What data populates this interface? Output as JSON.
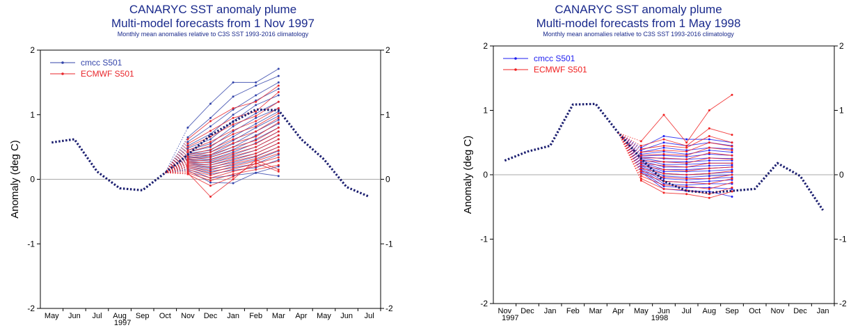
{
  "chart_data": [
    {
      "type": "line",
      "title": "CANARYC SST anomaly plume",
      "subtitle": "Multi-model forecasts from 1 Nov 1997",
      "note": "Monthly mean anomalies relative to C3S SST 1993-2016 climatology",
      "ylabel": "Anomaly (deg C)",
      "ylim": [
        -2,
        2
      ],
      "yticks": [
        "-2",
        "-1",
        "0",
        "1",
        "2"
      ],
      "x": [
        "May",
        "Jun",
        "Jul",
        "Aug",
        "Sep",
        "Oct",
        "Nov",
        "Dec",
        "Jan",
        "Feb",
        "Mar",
        "Apr",
        "May",
        "Jun",
        "Jul"
      ],
      "year_label": "1997",
      "legend": [
        "cmcc S501",
        "ECMWF S501"
      ],
      "colors": {
        "cmcc": "#3344aa",
        "ecmwf": "#e8262b",
        "obs": "#1c1f70"
      },
      "observed": [
        0.57,
        0.62,
        0.12,
        -0.14,
        -0.17,
        0.1,
        0.38,
        0.68,
        0.89,
        1.08,
        1.07,
        0.62,
        0.31,
        -0.12,
        -0.27
      ],
      "forecast_start_index": 5,
      "forecast_months": [
        6,
        7,
        8,
        9,
        10
      ],
      "series": [
        {
          "name": "cmcc S501",
          "members": [
            [
              0.8,
              1.17,
              1.5,
              1.5,
              1.71
            ],
            [
              0.65,
              0.95,
              1.28,
              1.45,
              1.6
            ],
            [
              0.58,
              0.82,
              1.08,
              1.3,
              1.5
            ],
            [
              0.52,
              0.7,
              1.0,
              1.22,
              1.4
            ],
            [
              0.48,
              0.62,
              0.9,
              1.15,
              1.3
            ],
            [
              0.45,
              0.55,
              0.82,
              1.02,
              1.2
            ],
            [
              0.42,
              0.5,
              0.74,
              0.95,
              1.1
            ],
            [
              0.4,
              0.45,
              0.66,
              0.86,
              1.05
            ],
            [
              0.38,
              0.42,
              0.6,
              0.8,
              0.98
            ],
            [
              0.36,
              0.38,
              0.55,
              0.74,
              0.92
            ],
            [
              0.34,
              0.36,
              0.5,
              0.68,
              0.86
            ],
            [
              0.33,
              0.34,
              0.46,
              0.62,
              0.8
            ],
            [
              0.31,
              0.31,
              0.42,
              0.56,
              0.74
            ],
            [
              0.3,
              0.28,
              0.38,
              0.5,
              0.68
            ],
            [
              0.28,
              0.25,
              0.34,
              0.45,
              0.62
            ],
            [
              0.26,
              0.22,
              0.3,
              0.4,
              0.56
            ],
            [
              0.24,
              0.19,
              0.26,
              0.35,
              0.5
            ],
            [
              0.22,
              0.16,
              0.22,
              0.3,
              0.44
            ],
            [
              0.2,
              0.12,
              0.18,
              0.24,
              0.38
            ],
            [
              0.18,
              0.08,
              0.14,
              0.18,
              0.3
            ],
            [
              0.16,
              0.02,
              0.06,
              0.1,
              0.2
            ],
            [
              0.14,
              -0.05,
              -0.06,
              0.1,
              0.05
            ]
          ]
        },
        {
          "name": "ECMWF S501",
          "members": [
            [
              0.62,
              0.9,
              1.1,
              1.2,
              1.45
            ],
            [
              0.55,
              0.75,
              0.95,
              1.05,
              1.35
            ],
            [
              0.5,
              0.66,
              0.85,
              0.98,
              1.2
            ],
            [
              0.45,
              0.58,
              0.76,
              0.9,
              1.1
            ],
            [
              0.42,
              0.52,
              0.7,
              0.82,
              1.02
            ],
            [
              0.38,
              0.46,
              0.62,
              0.74,
              0.95
            ],
            [
              0.35,
              0.42,
              0.56,
              0.66,
              0.88
            ],
            [
              0.32,
              0.38,
              0.5,
              0.6,
              0.8
            ],
            [
              0.3,
              0.34,
              0.45,
              0.55,
              0.74
            ],
            [
              0.28,
              0.3,
              0.4,
              0.5,
              0.68
            ],
            [
              0.26,
              0.26,
              0.36,
              0.45,
              0.62
            ],
            [
              0.24,
              0.22,
              0.32,
              0.4,
              0.56
            ],
            [
              0.22,
              0.18,
              0.28,
              0.36,
              0.5
            ],
            [
              0.2,
              0.14,
              0.24,
              0.32,
              0.45
            ],
            [
              0.18,
              0.1,
              0.2,
              0.28,
              0.4
            ],
            [
              0.15,
              0.06,
              0.16,
              0.24,
              0.34
            ],
            [
              0.12,
              0.02,
              0.12,
              0.2,
              0.28
            ],
            [
              0.1,
              -0.02,
              0.08,
              0.15,
              0.22
            ],
            [
              0.08,
              -0.1,
              0.04,
              0.25,
              0.12
            ],
            [
              0.1,
              -0.27,
              0.0,
              0.3,
              0.15
            ]
          ]
        }
      ]
    },
    {
      "type": "line",
      "title": "CANARYC SST anomaly plume",
      "subtitle": "Multi-model forecasts from 1 May 1998",
      "note": "Monthly mean anomalies relative to C3S SST 1993-2016 climatology",
      "ylabel": "Anomaly (deg C)",
      "ylim": [
        -2,
        2
      ],
      "yticks": [
        "-2",
        "-1",
        "0",
        "1",
        "2"
      ],
      "x": [
        "Nov",
        "Dec",
        "Jan",
        "Feb",
        "Mar",
        "Apr",
        "May",
        "Jun",
        "Jul",
        "Aug",
        "Sep",
        "Oct",
        "Nov",
        "Dec",
        "Jan"
      ],
      "year_labels": [
        {
          "index": 0,
          "text": "1997"
        },
        {
          "index": 7,
          "text": "1998"
        }
      ],
      "legend": [
        "cmcc S501",
        "ECMWF S501"
      ],
      "colors": {
        "cmcc": "#1d1df0",
        "ecmwf": "#f02020",
        "obs": "#1c1f70"
      },
      "observed": [
        0.22,
        0.36,
        0.45,
        1.09,
        1.1,
        0.65,
        0.25,
        -0.1,
        -0.25,
        -0.28,
        -0.25,
        -0.22,
        0.18,
        -0.02,
        -0.55
      ],
      "forecast_start_index": 5,
      "forecast_months": [
        6,
        7,
        8,
        9,
        10
      ],
      "series": [
        {
          "name": "cmcc S501",
          "members": [
            [
              0.42,
              0.6,
              0.55,
              0.55,
              0.5
            ],
            [
              0.38,
              0.5,
              0.45,
              0.5,
              0.45
            ],
            [
              0.35,
              0.42,
              0.38,
              0.42,
              0.4
            ],
            [
              0.32,
              0.36,
              0.32,
              0.38,
              0.35
            ],
            [
              0.3,
              0.3,
              0.28,
              0.32,
              0.3
            ],
            [
              0.28,
              0.25,
              0.24,
              0.26,
              0.25
            ],
            [
              0.26,
              0.2,
              0.2,
              0.22,
              0.22
            ],
            [
              0.24,
              0.16,
              0.16,
              0.18,
              0.18
            ],
            [
              0.22,
              0.12,
              0.12,
              0.14,
              0.15
            ],
            [
              0.2,
              0.08,
              0.08,
              0.1,
              0.12
            ],
            [
              0.18,
              0.05,
              0.05,
              0.06,
              0.08
            ],
            [
              0.16,
              0.02,
              0.0,
              0.02,
              0.04
            ],
            [
              0.14,
              -0.02,
              -0.04,
              -0.02,
              0.0
            ],
            [
              0.12,
              -0.06,
              -0.08,
              -0.06,
              -0.04
            ],
            [
              0.1,
              -0.1,
              -0.12,
              -0.1,
              -0.08
            ],
            [
              0.08,
              -0.14,
              -0.16,
              -0.14,
              -0.14
            ],
            [
              0.06,
              -0.18,
              -0.2,
              -0.2,
              -0.22
            ],
            [
              0.04,
              -0.22,
              -0.25,
              -0.26,
              -0.34
            ]
          ]
        },
        {
          "name": "ECMWF S501",
          "members": [
            [
              0.52,
              0.93,
              0.5,
              1.0,
              1.24
            ],
            [
              0.45,
              0.55,
              0.45,
              0.72,
              0.62
            ],
            [
              0.4,
              0.45,
              0.42,
              0.6,
              0.5
            ],
            [
              0.35,
              0.38,
              0.36,
              0.5,
              0.44
            ],
            [
              0.3,
              0.32,
              0.3,
              0.42,
              0.38
            ],
            [
              0.26,
              0.26,
              0.24,
              0.34,
              0.3
            ],
            [
              0.22,
              0.2,
              0.18,
              0.26,
              0.24
            ],
            [
              0.18,
              0.14,
              0.12,
              0.18,
              0.18
            ],
            [
              0.14,
              0.08,
              0.06,
              0.1,
              0.12
            ],
            [
              0.1,
              0.02,
              0.0,
              0.02,
              0.06
            ],
            [
              0.06,
              -0.04,
              -0.06,
              -0.06,
              0.0
            ],
            [
              0.02,
              -0.1,
              -0.12,
              -0.14,
              -0.06
            ],
            [
              -0.02,
              -0.16,
              -0.18,
              -0.22,
              -0.12
            ],
            [
              -0.06,
              -0.22,
              -0.24,
              -0.3,
              -0.2
            ],
            [
              -0.09,
              -0.28,
              -0.3,
              -0.36,
              -0.26
            ]
          ]
        }
      ]
    }
  ]
}
